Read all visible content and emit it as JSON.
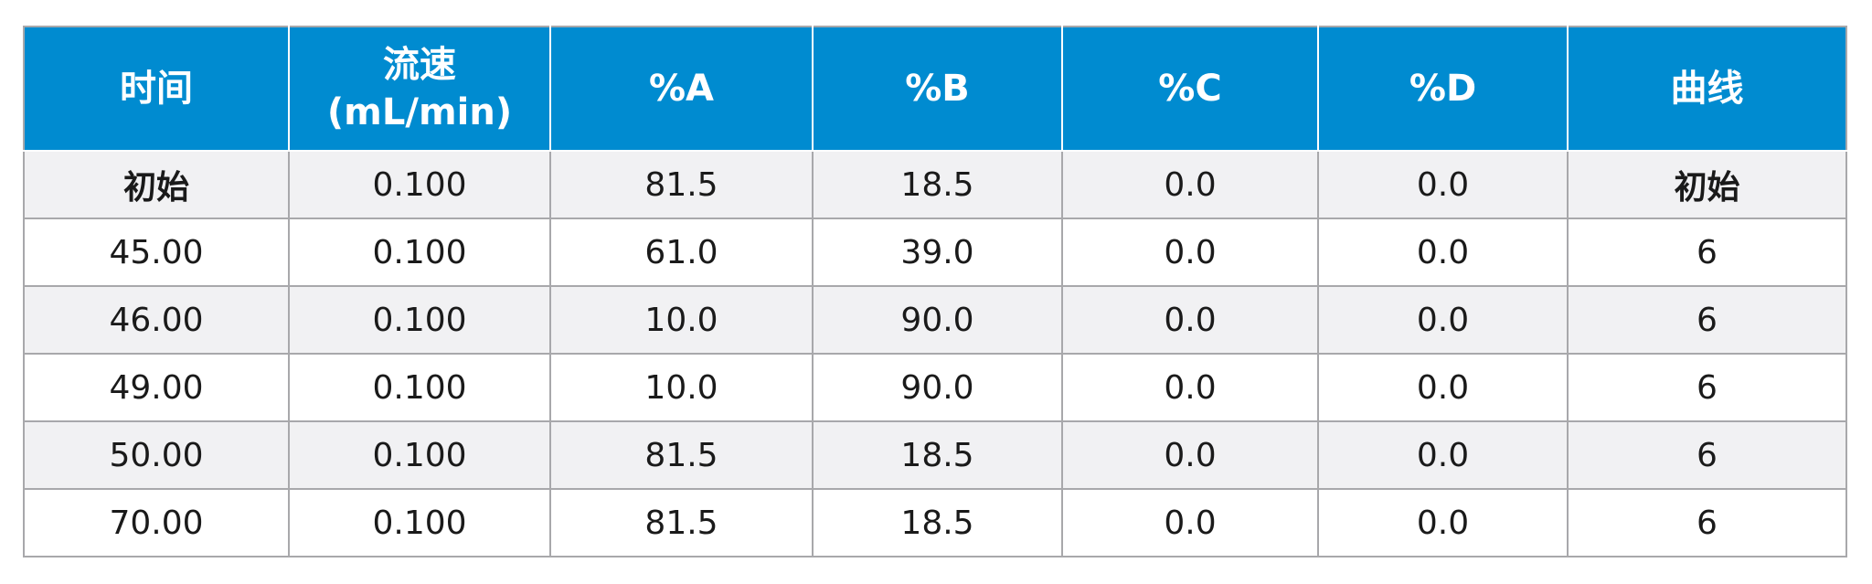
{
  "table": {
    "headers": [
      "时间",
      "流速\n(mL/min)",
      "%A",
      "%B",
      "%C",
      "%D",
      "曲线"
    ],
    "header_flow_line1": "流速",
    "header_flow_line2": "(mL/min)",
    "rows": [
      [
        "初始",
        "0.100",
        "81.5",
        "18.5",
        "0.0",
        "0.0",
        "初始"
      ],
      [
        "45.00",
        "0.100",
        "61.0",
        "39.0",
        "0.0",
        "0.0",
        "6"
      ],
      [
        "46.00",
        "0.100",
        "10.0",
        "90.0",
        "0.0",
        "0.0",
        "6"
      ],
      [
        "49.00",
        "0.100",
        "10.0",
        "90.0",
        "0.0",
        "0.0",
        "6"
      ],
      [
        "50.00",
        "0.100",
        "81.5",
        "18.5",
        "0.0",
        "0.0",
        "6"
      ],
      [
        "70.00",
        "0.100",
        "81.5",
        "18.5",
        "0.0",
        "0.0",
        "6"
      ]
    ]
  },
  "colors": {
    "header_bg": "#008bd0",
    "header_text": "#ffffff",
    "row_alt_bg": "#f1f1f3",
    "grid": "#a8a8ab"
  }
}
